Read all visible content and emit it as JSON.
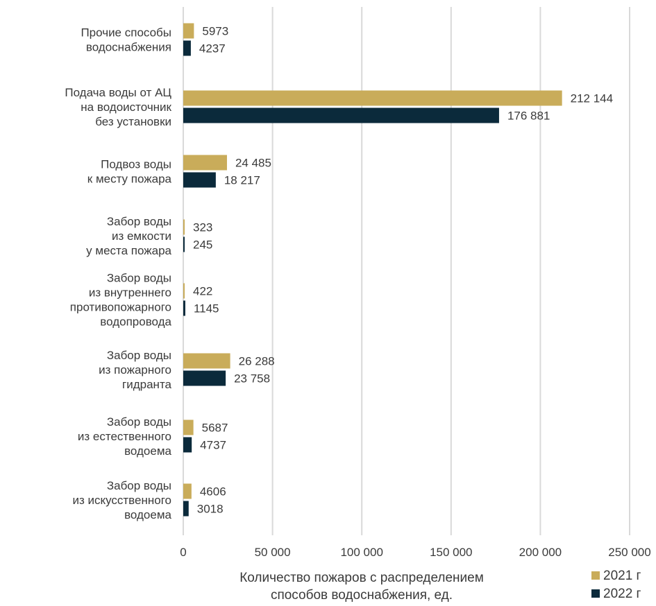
{
  "chart_data": {
    "type": "bar",
    "orientation": "horizontal",
    "categories": [
      [
        "Прочие способы",
        "водоснабжения"
      ],
      [
        "Подача воды от АЦ",
        "на водоисточник",
        "без установки"
      ],
      [
        "Подвоз воды",
        "к месту пожара"
      ],
      [
        "Забор воды",
        "из емкости",
        "у места пожара"
      ],
      [
        "Забор воды",
        "из внутреннего",
        "противопожарного",
        "водопровода"
      ],
      [
        "Забор воды",
        "из пожарного",
        "гидранта"
      ],
      [
        "Забор воды",
        "из естественного",
        "водоема"
      ],
      [
        "Забор воды",
        "из искусственного",
        "водоема"
      ]
    ],
    "series": [
      {
        "name": "2021 г",
        "color": "#c9ac5a",
        "values": [
          5973,
          212144,
          24485,
          323,
          422,
          26288,
          5687,
          4606
        ],
        "labels": [
          "5973",
          "212 144",
          "24 485",
          "323",
          "422",
          "26 288",
          "5687",
          "4606"
        ]
      },
      {
        "name": "2022 г",
        "color": "#0b2a3b",
        "values": [
          4237,
          176881,
          18217,
          245,
          1145,
          23758,
          4737,
          3018
        ],
        "labels": [
          "4237",
          "176 881",
          "18 217",
          "245",
          "1145",
          "23 758",
          "4737",
          "3018"
        ]
      }
    ],
    "xlabel": [
      "Количество пожаров с распределением",
      "способов водоснабжения, ед."
    ],
    "xlim": [
      0,
      250000
    ],
    "xticks": [
      0,
      50000,
      100000,
      150000,
      200000,
      250000
    ],
    "xtick_labels": [
      "0",
      "50 000",
      "100 000",
      "150 000",
      "200 000",
      "250 000"
    ],
    "grid": true,
    "legend_position": "bottom-right"
  }
}
